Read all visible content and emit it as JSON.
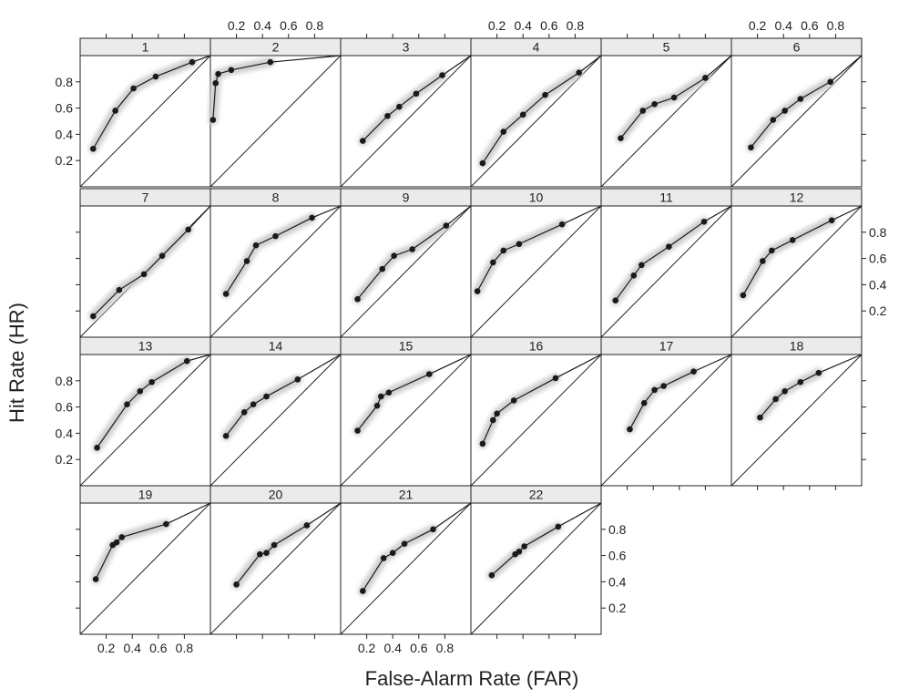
{
  "chart_data": {
    "type": "line",
    "xlabel": "False-Alarm Rate (FAR)",
    "ylabel": "Hit Rate (HR)",
    "xlim": [
      0,
      1
    ],
    "ylim": [
      0,
      1
    ],
    "tick_values": [
      0.2,
      0.4,
      0.6,
      0.8
    ],
    "tick_labels": [
      "0.2",
      "0.4",
      "0.6",
      "0.8"
    ],
    "reference_line": "diagonal",
    "colors": {
      "line": "#1a1a1a",
      "band": "#cfcfcf",
      "strip": "#ebebeb",
      "frame": "#222222"
    },
    "panels": [
      {
        "label": "1",
        "far": [
          0.1,
          0.27,
          0.41,
          0.58,
          0.86
        ],
        "hr": [
          0.29,
          0.58,
          0.75,
          0.84,
          0.95
        ]
      },
      {
        "label": "2",
        "far": [
          0.02,
          0.04,
          0.06,
          0.16,
          0.46
        ],
        "hr": [
          0.51,
          0.79,
          0.86,
          0.89,
          0.95
        ]
      },
      {
        "label": "3",
        "far": [
          0.17,
          0.36,
          0.45,
          0.58,
          0.78
        ],
        "hr": [
          0.35,
          0.54,
          0.61,
          0.71,
          0.85
        ]
      },
      {
        "label": "4",
        "far": [
          0.09,
          0.25,
          0.4,
          0.57,
          0.83
        ],
        "hr": [
          0.18,
          0.42,
          0.55,
          0.7,
          0.87
        ]
      },
      {
        "label": "5",
        "far": [
          0.15,
          0.32,
          0.41,
          0.56,
          0.8
        ],
        "hr": [
          0.37,
          0.58,
          0.63,
          0.68,
          0.83
        ]
      },
      {
        "label": "6",
        "far": [
          0.15,
          0.32,
          0.41,
          0.53,
          0.76
        ],
        "hr": [
          0.3,
          0.51,
          0.58,
          0.67,
          0.8
        ]
      },
      {
        "label": "7",
        "far": [
          0.1,
          0.3,
          0.49,
          0.63,
          0.83
        ],
        "hr": [
          0.16,
          0.36,
          0.48,
          0.62,
          0.82
        ]
      },
      {
        "label": "8",
        "far": [
          0.12,
          0.28,
          0.35,
          0.5,
          0.78
        ],
        "hr": [
          0.33,
          0.58,
          0.7,
          0.77,
          0.91
        ]
      },
      {
        "label": "9",
        "far": [
          0.13,
          0.32,
          0.41,
          0.55,
          0.81
        ],
        "hr": [
          0.29,
          0.52,
          0.62,
          0.67,
          0.85
        ]
      },
      {
        "label": "10",
        "far": [
          0.05,
          0.17,
          0.25,
          0.37,
          0.7
        ],
        "hr": [
          0.35,
          0.57,
          0.66,
          0.71,
          0.86
        ]
      },
      {
        "label": "11",
        "far": [
          0.11,
          0.25,
          0.31,
          0.52,
          0.79
        ],
        "hr": [
          0.28,
          0.47,
          0.55,
          0.69,
          0.88
        ]
      },
      {
        "label": "12",
        "far": [
          0.09,
          0.24,
          0.31,
          0.47,
          0.77
        ],
        "hr": [
          0.32,
          0.58,
          0.66,
          0.74,
          0.89
        ]
      },
      {
        "label": "13",
        "far": [
          0.13,
          0.36,
          0.46,
          0.55,
          0.82
        ],
        "hr": [
          0.29,
          0.62,
          0.72,
          0.79,
          0.95
        ]
      },
      {
        "label": "14",
        "far": [
          0.12,
          0.26,
          0.33,
          0.43,
          0.67
        ],
        "hr": [
          0.38,
          0.56,
          0.62,
          0.68,
          0.81
        ]
      },
      {
        "label": "15",
        "far": [
          0.13,
          0.28,
          0.31,
          0.37,
          0.68
        ],
        "hr": [
          0.42,
          0.61,
          0.68,
          0.71,
          0.85
        ]
      },
      {
        "label": "16",
        "far": [
          0.09,
          0.17,
          0.2,
          0.33,
          0.65
        ],
        "hr": [
          0.32,
          0.5,
          0.55,
          0.65,
          0.82
        ]
      },
      {
        "label": "17",
        "far": [
          0.22,
          0.33,
          0.41,
          0.48,
          0.71
        ],
        "hr": [
          0.43,
          0.63,
          0.73,
          0.76,
          0.87
        ]
      },
      {
        "label": "18",
        "far": [
          0.22,
          0.34,
          0.41,
          0.53,
          0.67
        ],
        "hr": [
          0.52,
          0.66,
          0.72,
          0.79,
          0.86
        ]
      },
      {
        "label": "19",
        "far": [
          0.12,
          0.25,
          0.28,
          0.32,
          0.66
        ],
        "hr": [
          0.42,
          0.68,
          0.7,
          0.74,
          0.84
        ]
      },
      {
        "label": "20",
        "far": [
          0.2,
          0.38,
          0.43,
          0.49,
          0.74
        ],
        "hr": [
          0.38,
          0.61,
          0.62,
          0.68,
          0.83
        ]
      },
      {
        "label": "21",
        "far": [
          0.17,
          0.33,
          0.4,
          0.49,
          0.71
        ],
        "hr": [
          0.33,
          0.58,
          0.62,
          0.69,
          0.8
        ]
      },
      {
        "label": "22",
        "far": [
          0.16,
          0.34,
          0.37,
          0.41,
          0.67
        ],
        "hr": [
          0.45,
          0.61,
          0.63,
          0.67,
          0.82
        ]
      }
    ]
  }
}
